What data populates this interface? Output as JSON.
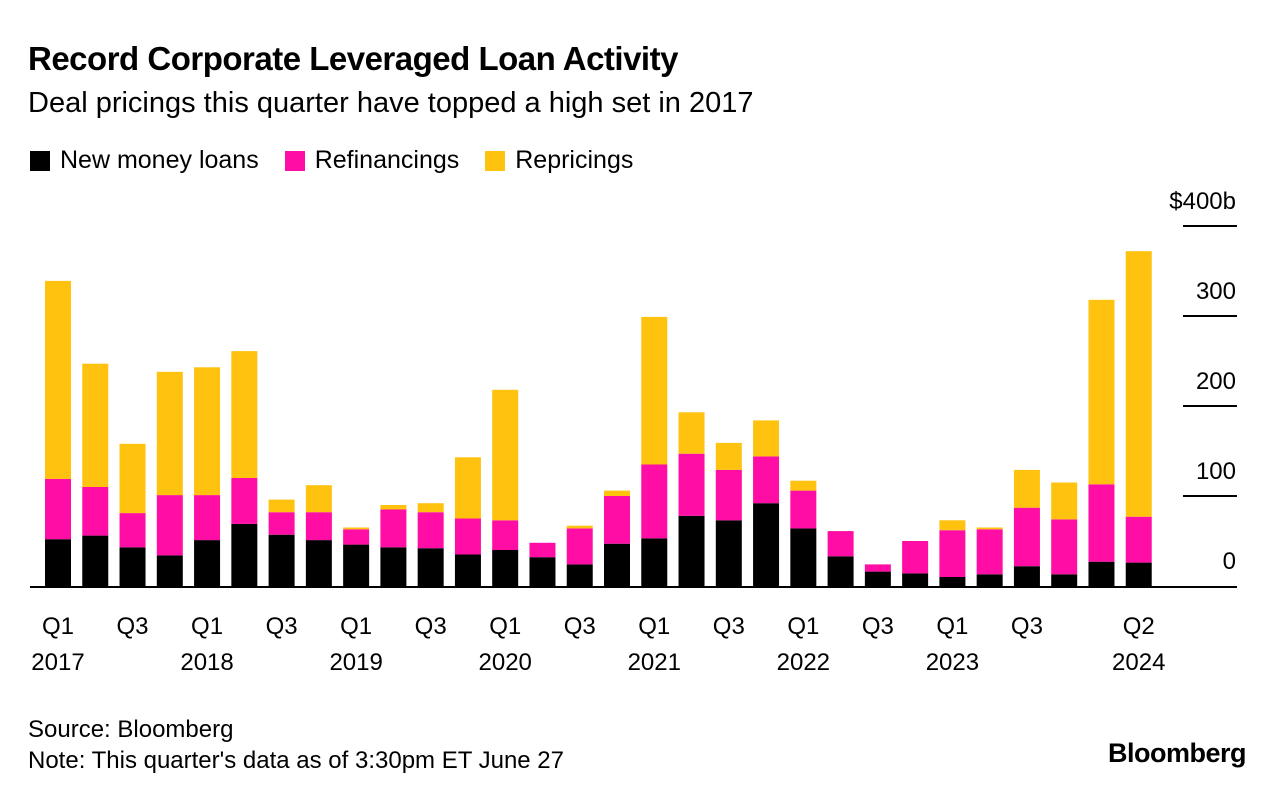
{
  "chart_data": {
    "type": "bar",
    "stacked": true,
    "title": "Record Corporate Leveraged Loan Activity",
    "subtitle": "Deal pricings this quarter have topped a high set in 2017",
    "ylabel": "",
    "ylim": [
      0,
      400
    ],
    "yticks": [
      {
        "value": 0,
        "label": "0"
      },
      {
        "value": 100,
        "label": "100"
      },
      {
        "value": 200,
        "label": "200"
      },
      {
        "value": 300,
        "label": "300"
      },
      {
        "value": 400,
        "label": "$400b"
      }
    ],
    "categories": [
      "Q1 2017",
      "Q2 2017",
      "Q3 2017",
      "Q4 2017",
      "Q1 2018",
      "Q2 2018",
      "Q3 2018",
      "Q4 2018",
      "Q1 2019",
      "Q2 2019",
      "Q3 2019",
      "Q4 2019",
      "Q1 2020",
      "Q2 2020",
      "Q3 2020",
      "Q4 2020",
      "Q1 2021",
      "Q2 2021",
      "Q3 2021",
      "Q4 2021",
      "Q1 2022",
      "Q2 2022",
      "Q3 2022",
      "Q4 2022",
      "Q1 2023",
      "Q2 2023",
      "Q3 2023",
      "Q4 2023",
      "Q1 2024",
      "Q2 2024"
    ],
    "x_tick_labels": [
      {
        "index": 0,
        "quarter": "Q1",
        "year": "2017"
      },
      {
        "index": 2,
        "quarter": "Q3",
        "year": ""
      },
      {
        "index": 4,
        "quarter": "Q1",
        "year": "2018"
      },
      {
        "index": 6,
        "quarter": "Q3",
        "year": ""
      },
      {
        "index": 8,
        "quarter": "Q1",
        "year": "2019"
      },
      {
        "index": 10,
        "quarter": "Q3",
        "year": ""
      },
      {
        "index": 12,
        "quarter": "Q1",
        "year": "2020"
      },
      {
        "index": 14,
        "quarter": "Q3",
        "year": ""
      },
      {
        "index": 16,
        "quarter": "Q1",
        "year": "2021"
      },
      {
        "index": 18,
        "quarter": "Q3",
        "year": ""
      },
      {
        "index": 20,
        "quarter": "Q1",
        "year": "2022"
      },
      {
        "index": 22,
        "quarter": "Q3",
        "year": ""
      },
      {
        "index": 24,
        "quarter": "Q1",
        "year": "2023"
      },
      {
        "index": 26,
        "quarter": "Q3",
        "year": ""
      },
      {
        "index": 29,
        "quarter": "Q2",
        "year": "2024"
      }
    ],
    "series": [
      {
        "name": "New money loans",
        "color": "#000000",
        "values": [
          52,
          56,
          43,
          34,
          51,
          69,
          57,
          51,
          46,
          43,
          42,
          35,
          40,
          32,
          24,
          47,
          53,
          78,
          73,
          92,
          64,
          33,
          16,
          14,
          10,
          13,
          22,
          13,
          27,
          26
        ]
      },
      {
        "name": "Refinancings",
        "color": "#ff0da5",
        "values": [
          67,
          54,
          38,
          67,
          50,
          51,
          25,
          31,
          17,
          42,
          40,
          40,
          33,
          16,
          40,
          53,
          82,
          69,
          56,
          52,
          42,
          28,
          8,
          36,
          52,
          50,
          65,
          61,
          86,
          51
        ]
      },
      {
        "name": "Repricings",
        "color": "#ffc20e",
        "values": [
          220,
          137,
          77,
          137,
          142,
          141,
          14,
          30,
          2,
          5,
          10,
          68,
          145,
          0,
          3,
          6,
          164,
          46,
          30,
          40,
          11,
          0,
          0,
          0,
          11,
          2,
          42,
          41,
          205,
          295
        ]
      }
    ],
    "legend_position": "top-left"
  },
  "footer": {
    "source": "Source: Bloomberg",
    "note": "Note: This quarter's data as of 3:30pm ET June 27"
  },
  "brand": "Bloomberg"
}
